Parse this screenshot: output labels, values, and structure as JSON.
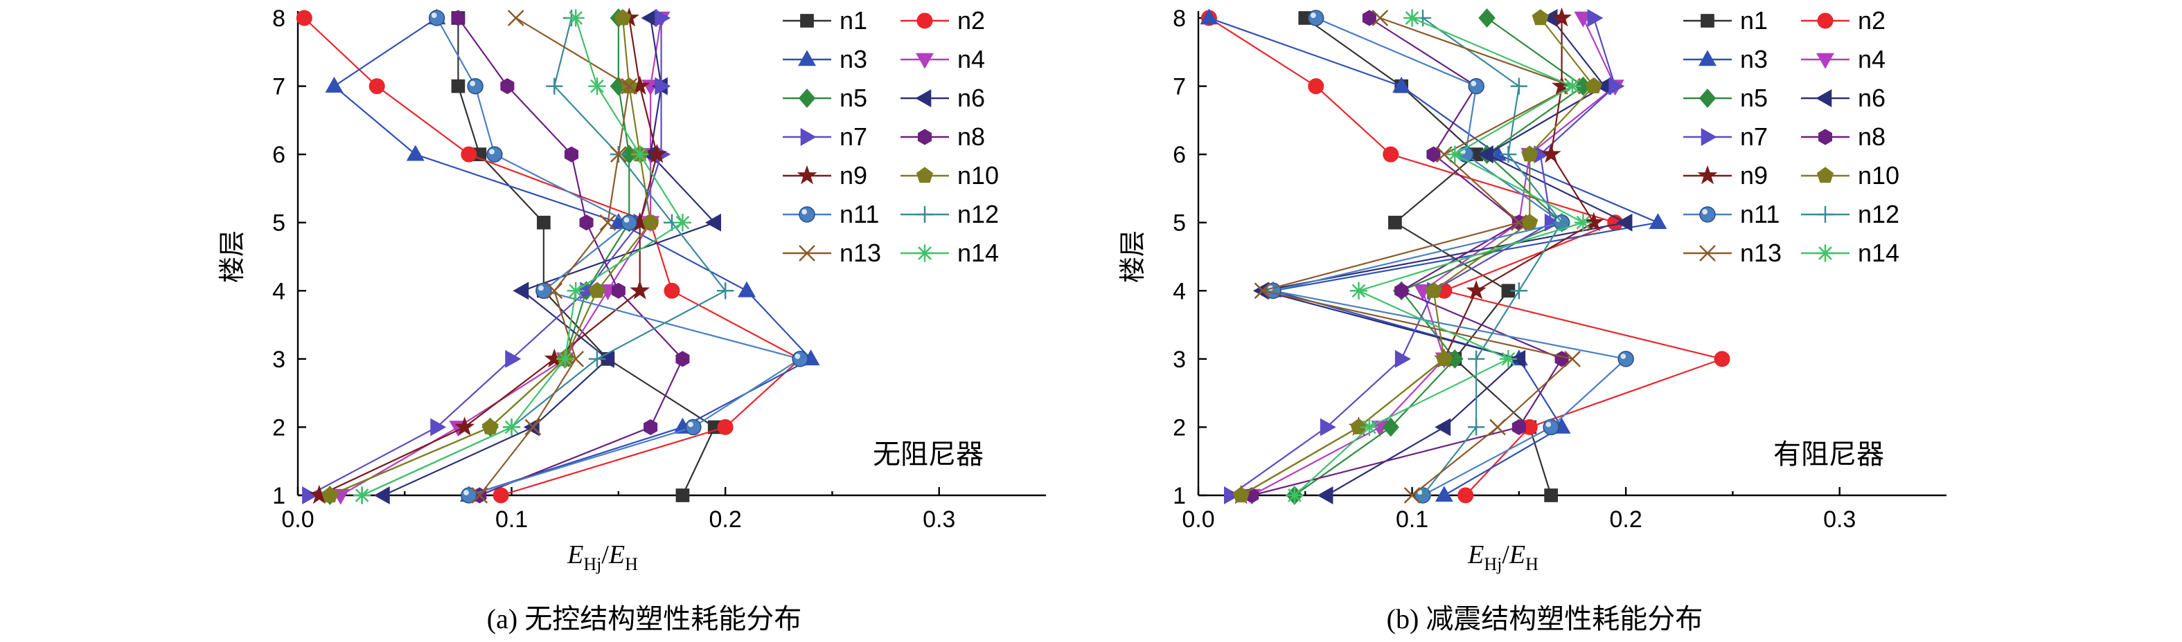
{
  "figure": {
    "captions": [
      "(a) 无控结构塑性耗能分布",
      "(b) 减震结构塑性耗能分布"
    ],
    "notes": [
      "无阻尼器",
      "有阻尼器"
    ]
  },
  "chart_data": [
    {
      "type": "line",
      "caption": "(a) 无控结构塑性耗能分布",
      "annotation": "无阻尼器",
      "xlabel": "E_Hj/E_H",
      "xlabel_main": "E",
      "xlabel_sub1": "Hj",
      "xlabel_mid": "/E",
      "xlabel_sub2": "H",
      "ylabel": "楼层",
      "xlim": [
        0.0,
        0.35
      ],
      "ylim": [
        1,
        8
      ],
      "xticks": [
        "0.0",
        "0.1",
        "0.2",
        "0.3"
      ],
      "xtick_values": [
        0.0,
        0.1,
        0.2,
        0.3
      ],
      "yticks": [
        "1",
        "2",
        "3",
        "4",
        "5",
        "6",
        "7",
        "8"
      ],
      "y": [
        1,
        2,
        3,
        4,
        5,
        6,
        7,
        8
      ],
      "legend_position": "top-right",
      "series": [
        {
          "name": "n1",
          "color": "#333333",
          "marker": "square",
          "values": [
            0.18,
            0.195,
            0.145,
            0.115,
            0.115,
            0.085,
            0.075,
            0.075
          ]
        },
        {
          "name": "n2",
          "color": "#e8262b",
          "marker": "circle",
          "values": [
            0.095,
            0.2,
            0.235,
            0.175,
            0.165,
            0.08,
            0.037,
            0.003
          ]
        },
        {
          "name": "n3",
          "color": "#3050b5",
          "marker": "triangle-up",
          "values": [
            0.08,
            0.18,
            0.24,
            0.21,
            0.15,
            0.055,
            0.017,
            0.065
          ]
        },
        {
          "name": "n4",
          "color": "#b33fc0",
          "marker": "triangle-down",
          "values": [
            0.02,
            0.075,
            0.125,
            0.145,
            0.165,
            0.165,
            0.165,
            0.17
          ]
        },
        {
          "name": "n5",
          "color": "#2e8b3e",
          "marker": "diamond",
          "values": [
            0.015,
            0.09,
            0.125,
            0.135,
            0.155,
            0.155,
            0.15,
            0.15
          ]
        },
        {
          "name": "n6",
          "color": "#2b2f7a",
          "marker": "triangle-left",
          "values": [
            0.04,
            0.11,
            0.145,
            0.105,
            0.195,
            0.165,
            0.17,
            0.165
          ]
        },
        {
          "name": "n7",
          "color": "#5b4bc4",
          "marker": "triangle-right",
          "values": [
            0.005,
            0.065,
            0.1,
            0.135,
            0.16,
            0.17,
            0.17,
            0.17
          ]
        },
        {
          "name": "n8",
          "color": "#6b2080",
          "marker": "hexagon",
          "values": [
            0.085,
            0.165,
            0.18,
            0.15,
            0.135,
            0.128,
            0.098,
            0.075
          ]
        },
        {
          "name": "n9",
          "color": "#7a1a1a",
          "marker": "star",
          "values": [
            0.01,
            0.078,
            0.12,
            0.16,
            0.16,
            0.168,
            0.16,
            0.155
          ]
        },
        {
          "name": "n10",
          "color": "#7d7d1f",
          "marker": "pentagon",
          "values": [
            0.015,
            0.09,
            0.125,
            0.14,
            0.165,
            0.16,
            0.155,
            0.152
          ]
        },
        {
          "name": "n11",
          "color": "#4a7fc1",
          "marker": "sphere",
          "values": [
            0.08,
            0.185,
            0.235,
            0.115,
            0.155,
            0.092,
            0.083,
            0.065
          ]
        },
        {
          "name": "n12",
          "color": "#3a8a9a",
          "marker": "plus",
          "values": [
            0.03,
            0.1,
            0.14,
            0.2,
            0.175,
            0.15,
            0.12,
            0.128
          ]
        },
        {
          "name": "n13",
          "color": "#8a5a2a",
          "marker": "x",
          "values": [
            0.085,
            0.11,
            0.13,
            0.12,
            0.145,
            0.15,
            0.155,
            0.102
          ]
        },
        {
          "name": "n14",
          "color": "#3fc26a",
          "marker": "asterisk",
          "values": [
            0.03,
            0.1,
            0.125,
            0.13,
            0.18,
            0.16,
            0.14,
            0.13
          ]
        }
      ]
    },
    {
      "type": "line",
      "caption": "(b) 减震结构塑性耗能分布",
      "annotation": "有阻尼器",
      "xlabel": "E_Hj/E_H",
      "xlabel_main": "E",
      "xlabel_sub1": "Hj",
      "xlabel_mid": "/E",
      "xlabel_sub2": "H",
      "ylabel": "楼层",
      "xlim": [
        0.0,
        0.35
      ],
      "ylim": [
        1,
        8
      ],
      "xticks": [
        "0.0",
        "0.1",
        "0.2",
        "0.3"
      ],
      "xtick_values": [
        0.0,
        0.1,
        0.2,
        0.3
      ],
      "yticks": [
        "1",
        "2",
        "3",
        "4",
        "5",
        "6",
        "7",
        "8"
      ],
      "y": [
        1,
        2,
        3,
        4,
        5,
        6,
        7,
        8
      ],
      "legend_position": "top-right",
      "series": [
        {
          "name": "n1",
          "color": "#333333",
          "marker": "square",
          "values": [
            0.165,
            0.155,
            0.12,
            0.145,
            0.092,
            0.13,
            0.095,
            0.05
          ]
        },
        {
          "name": "n2",
          "color": "#e8262b",
          "marker": "circle",
          "values": [
            0.125,
            0.155,
            0.245,
            0.115,
            0.195,
            0.09,
            0.055,
            0.005
          ]
        },
        {
          "name": "n3",
          "color": "#3050b5",
          "marker": "triangle-up",
          "values": [
            0.115,
            0.17,
            0.15,
            0.035,
            0.215,
            0.14,
            0.095,
            0.005
          ]
        },
        {
          "name": "n4",
          "color": "#b33fc0",
          "marker": "triangle-down",
          "values": [
            0.025,
            0.085,
            0.115,
            0.105,
            0.15,
            0.155,
            0.195,
            0.18
          ]
        },
        {
          "name": "n5",
          "color": "#2e8b3e",
          "marker": "diamond",
          "values": [
            0.045,
            0.09,
            0.12,
            0.095,
            0.17,
            0.135,
            0.18,
            0.135
          ]
        },
        {
          "name": "n6",
          "color": "#2b2f7a",
          "marker": "triangle-left",
          "values": [
            0.06,
            0.115,
            0.15,
            0.03,
            0.2,
            0.135,
            0.19,
            0.165
          ]
        },
        {
          "name": "n7",
          "color": "#5b4bc4",
          "marker": "triangle-right",
          "values": [
            0.015,
            0.06,
            0.095,
            0.11,
            0.165,
            0.16,
            0.195,
            0.185
          ]
        },
        {
          "name": "n8",
          "color": "#6b2080",
          "marker": "hexagon",
          "values": [
            0.025,
            0.15,
            0.17,
            0.095,
            0.15,
            0.11,
            0.13,
            0.08
          ]
        },
        {
          "name": "n9",
          "color": "#7a1a1a",
          "marker": "star",
          "values": [
            0.02,
            0.075,
            0.115,
            0.13,
            0.185,
            0.165,
            0.17,
            0.17
          ]
        },
        {
          "name": "n10",
          "color": "#7d7d1f",
          "marker": "pentagon",
          "values": [
            0.02,
            0.075,
            0.115,
            0.11,
            0.155,
            0.155,
            0.185,
            0.16
          ]
        },
        {
          "name": "n11",
          "color": "#4a7fc1",
          "marker": "sphere",
          "values": [
            0.105,
            0.165,
            0.2,
            0.035,
            0.17,
            0.125,
            0.13,
            0.055
          ]
        },
        {
          "name": "n12",
          "color": "#3a8a9a",
          "marker": "plus",
          "values": [
            0.105,
            0.13,
            0.13,
            0.15,
            0.17,
            0.145,
            0.15,
            0.105
          ]
        },
        {
          "name": "n13",
          "color": "#8a5a2a",
          "marker": "x",
          "values": [
            0.1,
            0.14,
            0.175,
            0.03,
            0.15,
            0.115,
            0.175,
            0.085
          ]
        },
        {
          "name": "n14",
          "color": "#3fc26a",
          "marker": "asterisk",
          "values": [
            0.045,
            0.08,
            0.145,
            0.075,
            0.18,
            0.12,
            0.175,
            0.1
          ]
        }
      ]
    }
  ]
}
